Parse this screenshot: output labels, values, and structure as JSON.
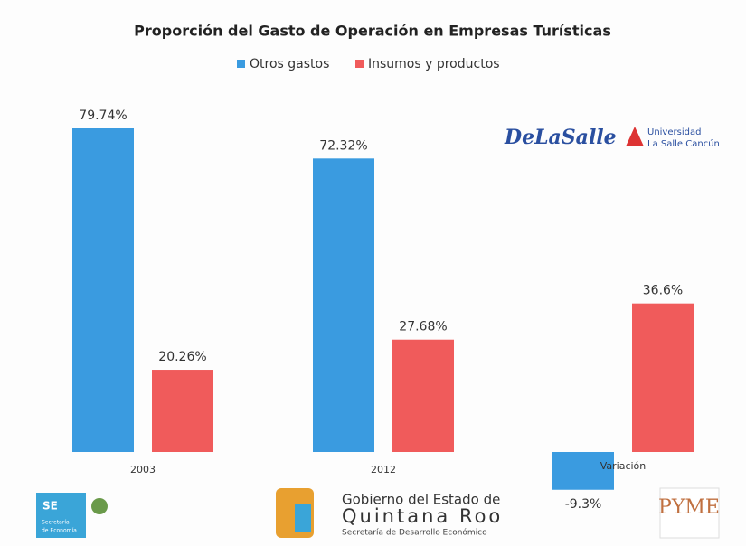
{
  "chart_data": {
    "type": "bar",
    "title": "Proporción del Gasto de Operación en Empresas Turísticas",
    "categories": [
      "2003",
      "2012",
      "Variación"
    ],
    "series": [
      {
        "name": "Otros gastos",
        "color": "#3a9be0",
        "values": [
          79.74,
          72.32,
          -9.3
        ],
        "value_labels": [
          "79.74%",
          "72.32%",
          "-9.3%"
        ]
      },
      {
        "name": "Insumos y productos",
        "color": "#f05b5b",
        "values": [
          20.26,
          27.68,
          36.6
        ],
        "value_labels": [
          "20.26%",
          "27.68%",
          "36.6%"
        ]
      }
    ],
    "legend": "top"
  },
  "logos": {
    "la_salle": {
      "script": "DeLaSalle",
      "line1": "Universidad",
      "line2": "La Salle Cancún"
    },
    "gobierno": {
      "line1": "Gobierno del Estado de",
      "line2": "Quintana Roo",
      "line3": "Secretaría de Desarrollo Económico"
    },
    "se": {
      "abbr": "SE",
      "line1": "Secretaría",
      "line2": "de Economía"
    },
    "pyme": {
      "text": "PYME"
    }
  }
}
